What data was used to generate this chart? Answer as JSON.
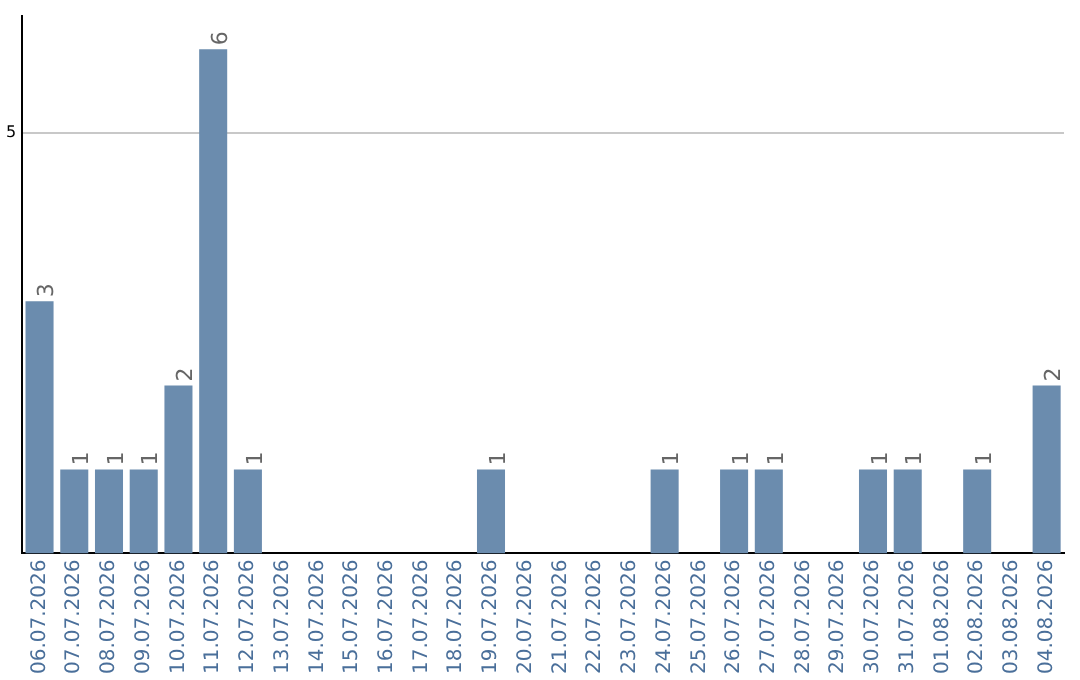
{
  "chart_data": {
    "type": "bar",
    "categories": [
      "06.07.2026",
      "07.07.2026",
      "08.07.2026",
      "09.07.2026",
      "10.07.2026",
      "11.07.2026",
      "12.07.2026",
      "13.07.2026",
      "14.07.2026",
      "15.07.2026",
      "16.07.2026",
      "17.07.2026",
      "18.07.2026",
      "19.07.2026",
      "20.07.2026",
      "21.07.2026",
      "22.07.2026",
      "23.07.2026",
      "24.07.2026",
      "25.07.2026",
      "26.07.2026",
      "27.07.2026",
      "28.07.2026",
      "29.07.2026",
      "30.07.2026",
      "31.07.2026",
      "01.08.2026",
      "02.08.2026",
      "03.08.2026",
      "04.08.2026"
    ],
    "values": [
      3,
      1,
      1,
      1,
      2,
      6,
      1,
      0,
      0,
      0,
      0,
      0,
      0,
      1,
      0,
      0,
      0,
      0,
      1,
      0,
      1,
      1,
      0,
      0,
      1,
      1,
      0,
      1,
      0,
      2
    ],
    "value_labels": [
      "3",
      "1",
      "1",
      "1",
      "2",
      "6",
      "1",
      null,
      null,
      null,
      null,
      null,
      null,
      "1",
      null,
      null,
      null,
      null,
      "1",
      null,
      "1",
      "1",
      null,
      null,
      "1",
      "1",
      null,
      "1",
      null,
      "2"
    ],
    "color": "#6b8cae",
    "ylim": [
      0,
      6.4
    ],
    "yticks": [
      5
    ],
    "grid": "y",
    "legend": false
  }
}
